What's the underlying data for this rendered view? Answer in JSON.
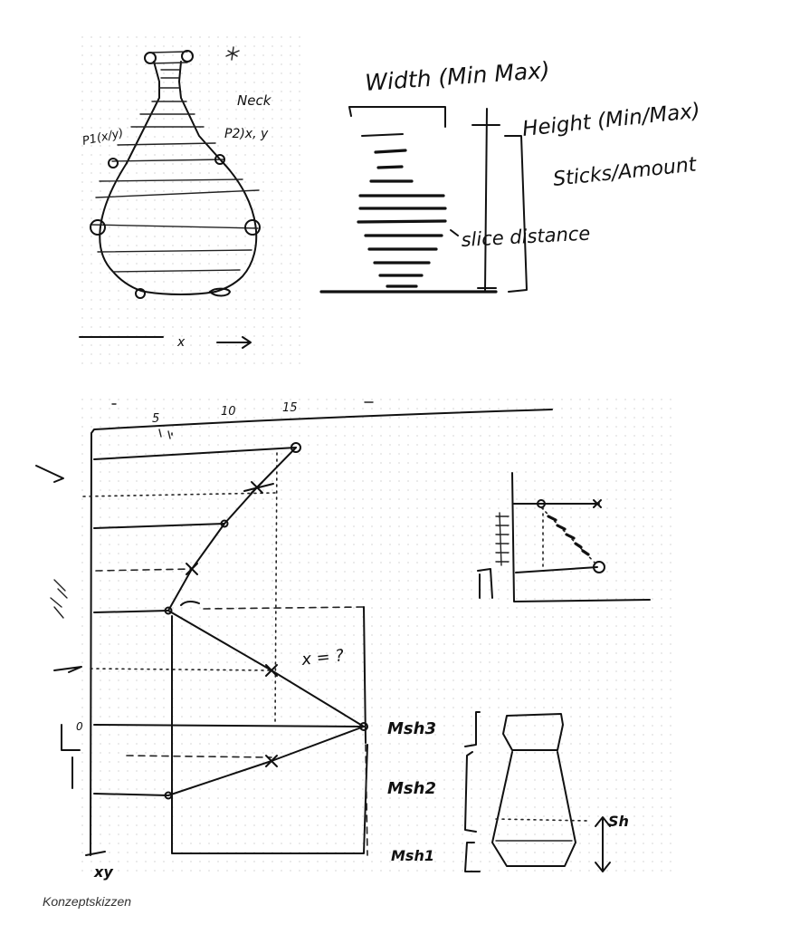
{
  "sketch_labels": {
    "neck": "Neck",
    "p1": "P1(x/y)",
    "p2": "P2)x, y",
    "x_axis": "x",
    "width": "Width (Min Max)",
    "height": "Height (Min/Max)",
    "sticks": "Sticks/Amount",
    "slice_distance": "slice distance",
    "tick_5": "5",
    "tick_10": "10",
    "tick_15": "15",
    "question": "x = ?",
    "tick_0": "0",
    "mesh3": "Msh3",
    "mesh2": "Msh2",
    "mesh1": "Msh1",
    "sh": "Sh",
    "xy": "xy"
  },
  "caption": "Konzeptskizzen"
}
